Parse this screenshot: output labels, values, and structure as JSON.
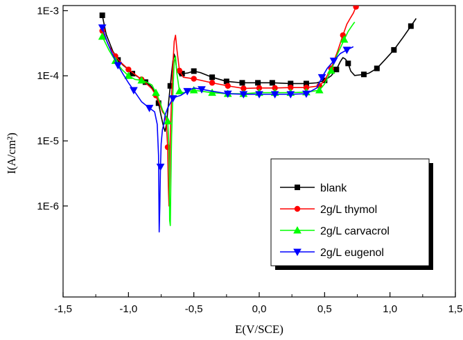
{
  "chart_data": {
    "type": "line",
    "xlabel": "E(V/SCE)",
    "ylabel": "I(A/cm²)",
    "y_scale": "log",
    "xlim": [
      -1.5,
      1.5
    ],
    "ylim": [
      4e-08,
      0.0012
    ],
    "x_ticks": [
      -1.5,
      -1.0,
      -0.5,
      0.0,
      0.5,
      1.0,
      1.5
    ],
    "x_tick_labels": [
      "-1,5",
      "-1,0",
      "-0,5",
      "0,0",
      "0,5",
      "1,0",
      "1,5"
    ],
    "y_ticks": [
      1e-06,
      1e-05,
      0.0001,
      0.001
    ],
    "y_tick_labels": [
      "1E-6",
      "1E-5",
      "1E-4",
      "1E-3"
    ],
    "grid": false,
    "legend_position": "bottom-right",
    "series": [
      {
        "name": "blank",
        "color": "#000000",
        "marker": "square",
        "x": [
          -1.2,
          -1.17,
          -1.12,
          -1.08,
          -1.04,
          -1.0,
          -0.97,
          -0.93,
          -0.9,
          -0.87,
          -0.83,
          -0.8,
          -0.77,
          -0.75,
          -0.73,
          -0.72,
          -0.71,
          -0.7,
          -0.69,
          -0.68,
          -0.67,
          -0.66,
          -0.65,
          -0.64,
          -0.63,
          -0.61,
          -0.59,
          -0.55,
          -0.5,
          -0.45,
          -0.36,
          -0.25,
          -0.13,
          -0.01,
          0.1,
          0.24,
          0.36,
          0.44,
          0.5,
          0.55,
          0.59,
          0.62,
          0.64,
          0.66,
          0.68,
          0.7,
          0.73,
          0.8,
          0.84,
          0.9,
          0.96,
          1.03,
          1.1,
          1.16,
          1.2
        ],
        "y": [
          0.00085,
          0.00043,
          0.00024,
          0.000175,
          0.000145,
          0.000125,
          0.000108,
          9.7e-05,
          8.8e-05,
          8e-05,
          7e-05,
          5.8e-05,
          3.8e-05,
          2.4e-05,
          1.6e-05,
          1.4e-05,
          1.8e-05,
          2.8e-05,
          4.5e-05,
          7e-05,
          0.00011,
          0.00017,
          0.000215,
          0.00017,
          0.00012,
          0.000105,
          0.000108,
          0.00011,
          0.000118,
          0.000112,
          9.5e-05,
          8.2e-05,
          7.8e-05,
          7.8e-05,
          7.8e-05,
          7.6e-05,
          7.6e-05,
          7.8e-05,
          8.5e-05,
          0.0001,
          0.000125,
          0.000165,
          0.00019,
          0.00018,
          0.000155,
          0.000118,
          0.000101,
          0.000105,
          0.00011,
          0.00013,
          0.000175,
          0.00025,
          0.00039,
          0.00058,
          0.00076
        ]
      },
      {
        "name": "2g/L thymol",
        "color": "#ff0000",
        "marker": "circle",
        "x": [
          -1.2,
          -1.15,
          -1.1,
          -1.05,
          -1.0,
          -0.95,
          -0.9,
          -0.86,
          -0.82,
          -0.79,
          -0.76,
          -0.74,
          -0.72,
          -0.71,
          -0.7,
          -0.695,
          -0.69,
          -0.685,
          -0.68,
          -0.67,
          -0.66,
          -0.65,
          -0.64,
          -0.63,
          -0.61,
          -0.58,
          -0.5,
          -0.36,
          -0.24,
          -0.12,
          0.0,
          0.12,
          0.24,
          0.36,
          0.46,
          0.5,
          0.55,
          0.6,
          0.64,
          0.67,
          0.7,
          0.72,
          0.74
        ],
        "y": [
          0.00049,
          0.00029,
          0.0002,
          0.000155,
          0.000125,
          0.000105,
          8.8e-05,
          7.5e-05,
          6.3e-05,
          5e-05,
          3.6e-05,
          2.8e-05,
          2.5e-05,
          1.8e-05,
          8e-06,
          2e-06,
          1e-06,
          3e-06,
          1.2e-05,
          5e-05,
          0.00015,
          0.00034,
          0.00042,
          0.00026,
          0.00012,
          9.5e-05,
          9e-05,
          7.8e-05,
          7e-05,
          6.4e-05,
          6.5e-05,
          6.5e-05,
          6.6e-05,
          6.6e-05,
          7e-05,
          8.5e-05,
          0.00013,
          0.00024,
          0.00042,
          0.00062,
          0.00079,
          0.00092,
          0.00115
        ]
      },
      {
        "name": "2g/L carvacrol",
        "color": "#00ff00",
        "marker": "triangle-up",
        "x": [
          -1.2,
          -1.15,
          -1.1,
          -1.05,
          -1.0,
          -0.95,
          -0.9,
          -0.86,
          -0.82,
          -0.79,
          -0.76,
          -0.74,
          -0.72,
          -0.71,
          -0.7,
          -0.69,
          -0.685,
          -0.68,
          -0.675,
          -0.67,
          -0.66,
          -0.65,
          -0.64,
          -0.63,
          -0.61,
          -0.58,
          -0.5,
          -0.36,
          -0.24,
          -0.12,
          0.0,
          0.12,
          0.24,
          0.36,
          0.46,
          0.5,
          0.55,
          0.6,
          0.65,
          0.68,
          0.71,
          0.73
        ],
        "y": [
          0.0004,
          0.00025,
          0.00017,
          0.000125,
          0.0001,
          8.8e-05,
          8.5e-05,
          8e-05,
          7.2e-05,
          5.5e-05,
          4e-05,
          3e-05,
          2.5e-05,
          2.3e-05,
          2e-05,
          8e-06,
          6e-07,
          5e-07,
          3e-06,
          1.2e-05,
          5.5e-05,
          0.00017,
          0.0002,
          0.00011,
          5.8e-05,
          5.5e-05,
          6e-05,
          5.5e-05,
          5.3e-05,
          5.3e-05,
          5.5e-05,
          5.5e-05,
          5.5e-05,
          5.6e-05,
          6e-05,
          7.5e-05,
          0.00012,
          0.00022,
          0.00036,
          0.00048,
          0.00059,
          0.00067
        ]
      },
      {
        "name": "2g/L eugenol",
        "color": "#0000ff",
        "marker": "triangle-down",
        "x": [
          -1.2,
          -1.16,
          -1.12,
          -1.08,
          -1.04,
          -1.0,
          -0.96,
          -0.9,
          -0.84,
          -0.8,
          -0.78,
          -0.77,
          -0.765,
          -0.76,
          -0.755,
          -0.75,
          -0.74,
          -0.73,
          -0.72,
          -0.7,
          -0.68,
          -0.66,
          -0.63,
          -0.6,
          -0.55,
          -0.5,
          -0.44,
          -0.36,
          -0.24,
          -0.12,
          0.0,
          0.12,
          0.24,
          0.36,
          0.44,
          0.48,
          0.52,
          0.57,
          0.62,
          0.67,
          0.72
        ],
        "y": [
          0.00055,
          0.00032,
          0.00021,
          0.000145,
          0.000105,
          7.8e-05,
          6e-05,
          4e-05,
          3.2e-05,
          2.8e-05,
          1.8e-05,
          6e-06,
          4e-07,
          1e-06,
          4e-06,
          9e-06,
          1.5e-05,
          1.8e-05,
          2.5e-05,
          3.2e-05,
          3.8e-05,
          4.5e-05,
          4.8e-05,
          5e-05,
          5.8e-05,
          6.5e-05,
          6.2e-05,
          5.8e-05,
          5.3e-05,
          5.2e-05,
          5.2e-05,
          5.2e-05,
          5.2e-05,
          5.3e-05,
          6.5e-05,
          9.5e-05,
          0.00013,
          0.00017,
          0.00022,
          0.00025,
          0.00028
        ]
      }
    ]
  }
}
